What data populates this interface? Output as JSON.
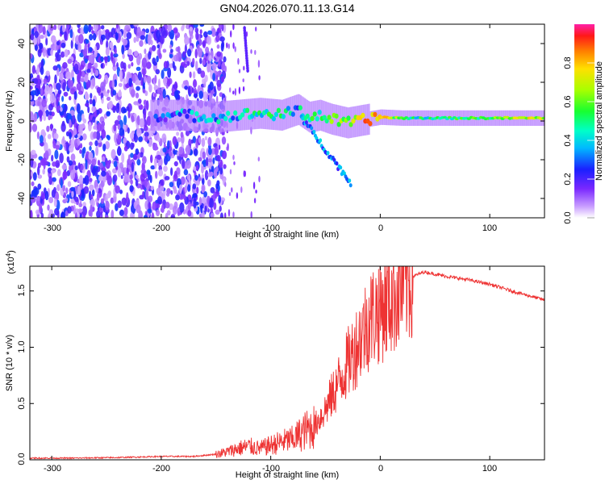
{
  "figure_title": "GN04.2026.070.11.13.G14",
  "colors": {
    "snr_line": "#ee3333",
    "spectrogram_noise": "#7a3ae8",
    "spectrogram_peak": "#ff2a2a"
  },
  "chart_data": [
    {
      "type": "heatmap",
      "panel": "spectrogram",
      "title": "GN04.2026.070.11.13.G14",
      "xlabel": "Height of straight line (km)",
      "ylabel": "Frequency (Hz)",
      "xlim": [
        -320,
        150
      ],
      "ylim": [
        -50,
        50
      ],
      "x_ticks": [
        "-300",
        "-200",
        "-100",
        "0",
        "100"
      ],
      "x_tick_values": [
        -300,
        -200,
        -100,
        0,
        100
      ],
      "y_ticks": [
        "-40",
        "-20",
        "0",
        "20",
        "40"
      ],
      "y_tick_values": [
        -40,
        -20,
        0,
        20,
        40
      ],
      "noise_region_end_km": -150,
      "signal_ridge": [
        {
          "x": -200,
          "y": 3,
          "amp": 0.25
        },
        {
          "x": -180,
          "y": 3,
          "amp": 0.3
        },
        {
          "x": -150,
          "y": 2,
          "amp": 0.35
        },
        {
          "x": -130,
          "y": 3,
          "amp": 0.4
        },
        {
          "x": -110,
          "y": 4,
          "amp": 0.45
        },
        {
          "x": -90,
          "y": 3,
          "amp": 0.45
        },
        {
          "x": -75,
          "y": 6,
          "amp": 0.35
        },
        {
          "x": -65,
          "y": 2,
          "amp": 0.55
        },
        {
          "x": -55,
          "y": 3,
          "amp": 0.5
        },
        {
          "x": -45,
          "y": 1,
          "amp": 0.55
        },
        {
          "x": -30,
          "y": -1,
          "amp": 0.65
        },
        {
          "x": -20,
          "y": 0,
          "amp": 0.75
        },
        {
          "x": -10,
          "y": 1,
          "amp": 0.85
        },
        {
          "x": 0,
          "y": 2,
          "amp": 0.8
        },
        {
          "x": 20,
          "y": 1.5,
          "amp": 0.5
        },
        {
          "x": 50,
          "y": 1.5,
          "amp": 0.45
        },
        {
          "x": 90,
          "y": 1.5,
          "amp": 0.55
        },
        {
          "x": 120,
          "y": 1.5,
          "amp": 0.65
        },
        {
          "x": 150,
          "y": 1.5,
          "amp": 0.7
        }
      ],
      "colorbar": {
        "label": "Normalized spectral amplitude",
        "range": [
          0.0,
          1.0
        ],
        "ticks": [
          "0.0",
          "0.2",
          "0.4",
          "0.6",
          "0.8"
        ],
        "tick_values": [
          0.0,
          0.2,
          0.4,
          0.6,
          0.8
        ]
      }
    },
    {
      "type": "line",
      "panel": "snr",
      "xlabel": "Height of straight line (km)",
      "ylabel": "SNR (10 * v/v)",
      "y_multiplier": "(x10",
      "y_multiplier_exp": "4",
      "y_multiplier_close": ")",
      "xlim": [
        -320,
        150
      ],
      "ylim": [
        0,
        1.72
      ],
      "x_ticks": [
        "-300",
        "-200",
        "-100",
        "0",
        "100"
      ],
      "x_tick_values": [
        -300,
        -200,
        -100,
        0,
        100
      ],
      "y_ticks": [
        "0.0",
        "0.5",
        "1.0",
        "1.5"
      ],
      "y_tick_values": [
        0,
        0.5,
        1.0,
        1.5
      ],
      "series": [
        {
          "name": "SNR",
          "x": [
            -320,
            -280,
            -240,
            -200,
            -170,
            -150,
            -140,
            -130,
            -120,
            -110,
            -100,
            -90,
            -80,
            -70,
            -60,
            -50,
            -40,
            -30,
            -25,
            -20,
            -15,
            -10,
            0,
            10,
            20,
            30,
            40,
            60,
            80,
            100,
            120,
            150
          ],
          "y": [
            0.015,
            0.015,
            0.02,
            0.03,
            0.03,
            0.05,
            0.07,
            0.1,
            0.12,
            0.1,
            0.13,
            0.16,
            0.18,
            0.25,
            0.3,
            0.45,
            0.65,
            0.85,
            0.95,
            1.05,
            1.15,
            1.25,
            1.35,
            1.45,
            1.55,
            1.63,
            1.67,
            1.63,
            1.6,
            1.56,
            1.5,
            1.42
          ]
        }
      ]
    }
  ]
}
